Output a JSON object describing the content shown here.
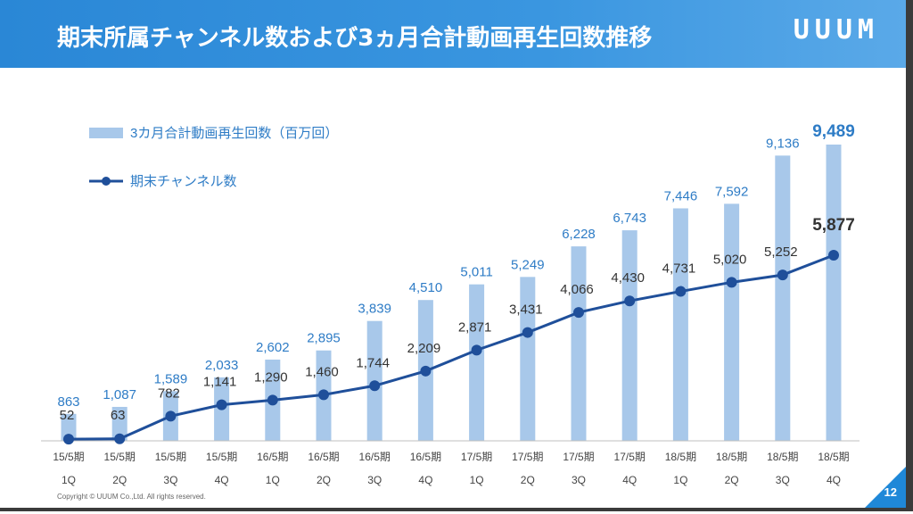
{
  "slide": {
    "title": "期末所属チャンネル数および3ヵ月合計動画再生回数推移",
    "logo": "UUUM",
    "copyright": "Copyright © UUUM Co.,Ltd. All rights reserved.",
    "page_number": "12"
  },
  "colors": {
    "header": "#2a87d6",
    "bar": "#a8c8ea",
    "bar_label": "#2e7cc6",
    "line": "#1f4f9a",
    "line_label": "#333333"
  },
  "chart_data": {
    "type": "bar+line",
    "title": "",
    "categories_top": [
      "15/5期",
      "15/5期",
      "15/5期",
      "15/5期",
      "16/5期",
      "16/5期",
      "16/5期",
      "16/5期",
      "17/5期",
      "17/5期",
      "17/5期",
      "17/5期",
      "18/5期",
      "18/5期",
      "18/5期",
      "18/5期"
    ],
    "categories_bottom": [
      "1Q",
      "2Q",
      "3Q",
      "4Q",
      "1Q",
      "2Q",
      "3Q",
      "4Q",
      "1Q",
      "2Q",
      "3Q",
      "4Q",
      "1Q",
      "2Q",
      "3Q",
      "4Q"
    ],
    "series": [
      {
        "name": "3カ月合計動画再生回数（百万回）",
        "kind": "bar",
        "values": [
          863,
          1087,
          1589,
          2033,
          2602,
          2895,
          3839,
          4510,
          5011,
          5249,
          6228,
          6743,
          7446,
          7592,
          9136,
          9489
        ],
        "labels": [
          "863",
          "1,087",
          "1,589",
          "2,033",
          "2,602",
          "2,895",
          "3,839",
          "4,510",
          "5,011",
          "5,249",
          "6,228",
          "6,743",
          "7,446",
          "7,592",
          "9,136",
          "9,489"
        ]
      },
      {
        "name": "期末チャンネル数",
        "kind": "line",
        "values": [
          52,
          63,
          782,
          1141,
          1290,
          1460,
          1744,
          2209,
          2871,
          3431,
          4066,
          4430,
          4731,
          5020,
          5252,
          5877
        ],
        "labels": [
          "52",
          "63",
          "782",
          "1,141",
          "1,290",
          "1,460",
          "1,744",
          "2,209",
          "2,871",
          "3,431",
          "4,066",
          "4,430",
          "4,731",
          "5,020",
          "5,252",
          "5,877"
        ]
      }
    ],
    "legend_position": "top-left",
    "grid": false
  }
}
